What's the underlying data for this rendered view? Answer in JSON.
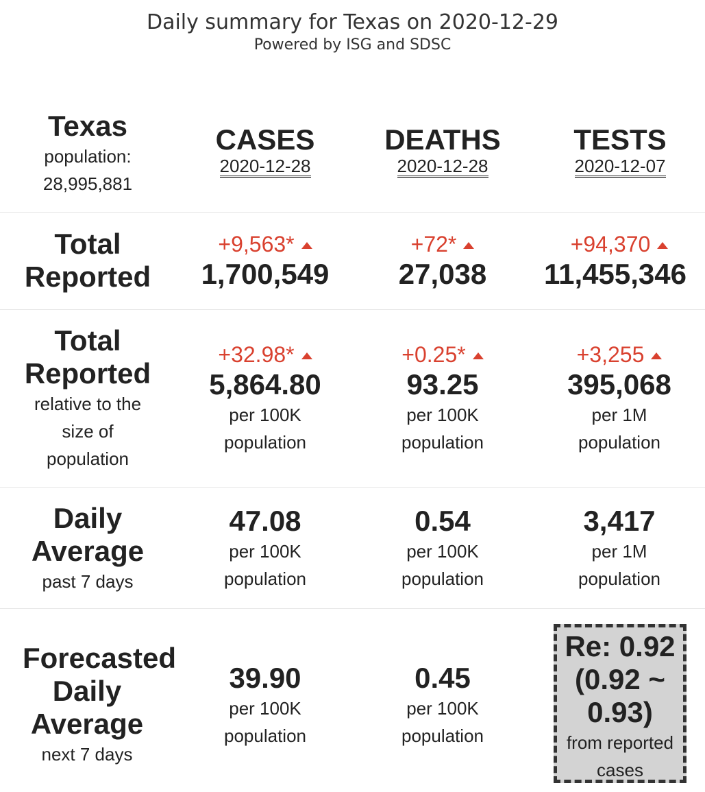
{
  "header": {
    "title": "Daily summary for Texas on 2020-12-29",
    "subtitle": "Powered by ISG and SDSC"
  },
  "region": {
    "name": "Texas",
    "population_label": "population:",
    "population_value": "28,995,881"
  },
  "columns": [
    {
      "title": "CASES",
      "date": "2020-12-28"
    },
    {
      "title": "DEATHS",
      "date": "2020-12-28"
    },
    {
      "title": "TESTS",
      "date": "2020-12-07"
    }
  ],
  "rows": {
    "total": {
      "label_line1": "Total",
      "label_line2": "Reported",
      "cells": [
        {
          "delta": "+9,563*",
          "value": "1,700,549"
        },
        {
          "delta": "+72*",
          "value": "27,038"
        },
        {
          "delta": "+94,370",
          "value": "11,455,346"
        }
      ]
    },
    "relative": {
      "label_line1": "Total",
      "label_line2": "Reported",
      "label_line3": "relative to the",
      "label_line4": "size of",
      "label_line5": "population",
      "cells": [
        {
          "delta": "+32.98*",
          "value": "5,864.80",
          "unit1": "per 100K",
          "unit2": "population"
        },
        {
          "delta": "+0.25*",
          "value": "93.25",
          "unit1": "per 100K",
          "unit2": "population"
        },
        {
          "delta": "+3,255",
          "value": "395,068",
          "unit1": "per 1M",
          "unit2": "population"
        }
      ]
    },
    "daily": {
      "label_line1": "Daily",
      "label_line2": "Average",
      "label_line3": "past 7 days",
      "cells": [
        {
          "value": "47.08",
          "unit1": "per 100K",
          "unit2": "population"
        },
        {
          "value": "0.54",
          "unit1": "per 100K",
          "unit2": "population"
        },
        {
          "value": "3,417",
          "unit1": "per 1M",
          "unit2": "population"
        }
      ]
    },
    "forecast": {
      "label_line1": "Forecasted",
      "label_line2": "Daily",
      "label_line3": "Average",
      "label_line4": "next 7 days",
      "cells": [
        {
          "value": "39.90",
          "unit1": "per 100K",
          "unit2": "population"
        },
        {
          "value": "0.45",
          "unit1": "per 100K",
          "unit2": "population"
        }
      ],
      "re": {
        "line1": "Re: 0.92",
        "line2": "(0.92 ~",
        "line3": "0.93)",
        "line4": "from reported",
        "line5": "cases"
      }
    }
  },
  "colors": {
    "delta": "#d9412f",
    "text": "#222222",
    "re_box_bg": "#d3d3d3"
  }
}
